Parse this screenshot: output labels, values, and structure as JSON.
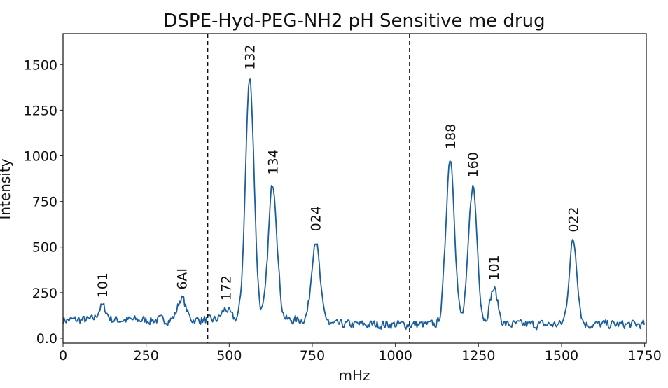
{
  "chart_data": {
    "type": "line",
    "title": "DSPE-Hyd-PEG-NH2 pH Sensitive me drug",
    "xlabel": "mHz",
    "ylabel": "Intensity",
    "xlim": [
      0,
      1755
    ],
    "ylim": [
      -27,
      1670
    ],
    "xticks": [
      0,
      250,
      500,
      750,
      1000,
      1250,
      1500,
      1750
    ],
    "xtick_labels": [
      "0",
      "250",
      "500",
      "750",
      "1000",
      "1250",
      "1500",
      "1750"
    ],
    "yticks": [
      0,
      250,
      500,
      750,
      1000,
      1250,
      1500
    ],
    "ytick_labels": [
      "0.0",
      "250",
      "500",
      "750",
      "1000",
      "1250",
      "1500"
    ],
    "grid": false,
    "line_color": "#1b5e9b",
    "baseline": [
      {
        "x_from": 0,
        "x_to": 800,
        "y": 100
      },
      {
        "x_from": 800,
        "x_to": 1750,
        "y": 75
      }
    ],
    "vlines": [
      {
        "x": 435,
        "style": "dashed",
        "color": "#111111"
      },
      {
        "x": 1043,
        "style": "dashed",
        "color": "#111111"
      }
    ],
    "peaks": [
      {
        "x": 118,
        "y": 175,
        "label": "101"
      },
      {
        "x": 357,
        "y": 220,
        "label": "6AI"
      },
      {
        "x": 490,
        "y": 160,
        "label": "172"
      },
      {
        "x": 562,
        "y": 1425,
        "label": "132"
      },
      {
        "x": 631,
        "y": 850,
        "label": "134"
      },
      {
        "x": 760,
        "y": 540,
        "label": "024"
      },
      {
        "x": 1165,
        "y": 990,
        "label": "188"
      },
      {
        "x": 1233,
        "y": 835,
        "label": "160"
      },
      {
        "x": 1296,
        "y": 270,
        "label": "101"
      },
      {
        "x": 1535,
        "y": 535,
        "label": "022"
      }
    ]
  }
}
